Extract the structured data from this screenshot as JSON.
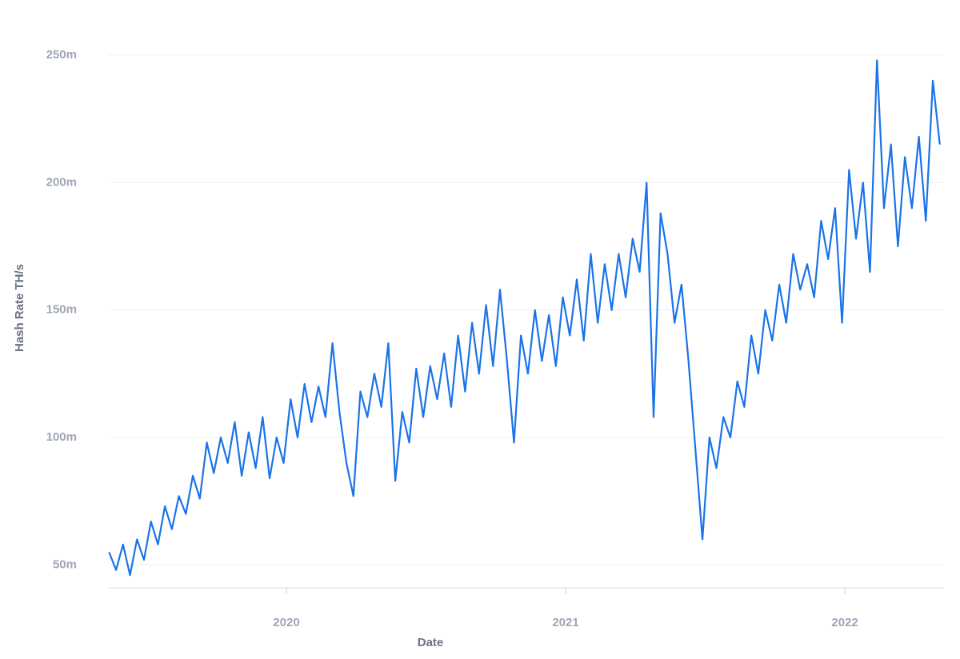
{
  "chart_data": {
    "type": "line",
    "x_label": "Date",
    "y_label": "Hash Rate TH/s",
    "x": [
      2019.365,
      2019.39,
      2019.415,
      2019.44,
      2019.465,
      2019.49,
      2019.515,
      2019.54,
      2019.565,
      2019.59,
      2019.615,
      2019.64,
      2019.665,
      2019.69,
      2019.715,
      2019.74,
      2019.765,
      2019.79,
      2019.815,
      2019.84,
      2019.865,
      2019.89,
      2019.915,
      2019.94,
      2019.965,
      2019.99,
      2020.015,
      2020.04,
      2020.065,
      2020.09,
      2020.115,
      2020.14,
      2020.165,
      2020.19,
      2020.215,
      2020.24,
      2020.265,
      2020.29,
      2020.315,
      2020.34,
      2020.365,
      2020.39,
      2020.415,
      2020.44,
      2020.465,
      2020.49,
      2020.515,
      2020.54,
      2020.565,
      2020.59,
      2020.615,
      2020.64,
      2020.665,
      2020.69,
      2020.715,
      2020.74,
      2020.765,
      2020.79,
      2020.815,
      2020.84,
      2020.865,
      2020.89,
      2020.915,
      2020.94,
      2020.965,
      2020.99,
      2021.015,
      2021.04,
      2021.065,
      2021.09,
      2021.115,
      2021.14,
      2021.165,
      2021.19,
      2021.215,
      2021.24,
      2021.265,
      2021.29,
      2021.315,
      2021.34,
      2021.365,
      2021.39,
      2021.415,
      2021.44,
      2021.465,
      2021.49,
      2021.515,
      2021.54,
      2021.565,
      2021.59,
      2021.615,
      2021.64,
      2021.665,
      2021.69,
      2021.715,
      2021.74,
      2021.765,
      2021.79,
      2021.815,
      2021.84,
      2021.865,
      2021.89,
      2021.915,
      2021.94,
      2021.965,
      2021.99,
      2022.015,
      2022.04,
      2022.065,
      2022.09,
      2022.115,
      2022.14,
      2022.165,
      2022.19,
      2022.215,
      2022.24,
      2022.265,
      2022.29,
      2022.315,
      2022.34
    ],
    "values": [
      55,
      48,
      58,
      46,
      60,
      52,
      67,
      58,
      73,
      64,
      77,
      70,
      85,
      76,
      98,
      86,
      100,
      90,
      106,
      85,
      102,
      88,
      108,
      84,
      100,
      90,
      115,
      100,
      121,
      106,
      120,
      108,
      137,
      110,
      90,
      77,
      118,
      108,
      125,
      112,
      137,
      83,
      110,
      98,
      127,
      108,
      128,
      115,
      133,
      112,
      140,
      118,
      145,
      125,
      152,
      128,
      158,
      130,
      98,
      140,
      125,
      150,
      130,
      148,
      128,
      155,
      140,
      162,
      138,
      172,
      145,
      168,
      150,
      172,
      155,
      178,
      165,
      200,
      108,
      188,
      172,
      145,
      160,
      130,
      95,
      60,
      100,
      88,
      108,
      100,
      122,
      112,
      140,
      125,
      150,
      138,
      160,
      145,
      172,
      158,
      168,
      155,
      185,
      170,
      190,
      145,
      205,
      178,
      200,
      165,
      248,
      190,
      215,
      175,
      210,
      190,
      218,
      185,
      240,
      215
    ],
    "color": "#1a73e8",
    "xlim": [
      2019.364,
      2022.355
    ],
    "xticks": [
      2020,
      2021,
      2022
    ],
    "ylim": [
      41,
      261
    ],
    "yticks": [
      {
        "value": 50,
        "label": "50m"
      },
      {
        "value": 100,
        "label": "100m"
      },
      {
        "value": 150,
        "label": "150m"
      },
      {
        "value": 200,
        "label": "200m"
      },
      {
        "value": 250,
        "label": "250m"
      }
    ],
    "grid": true
  }
}
